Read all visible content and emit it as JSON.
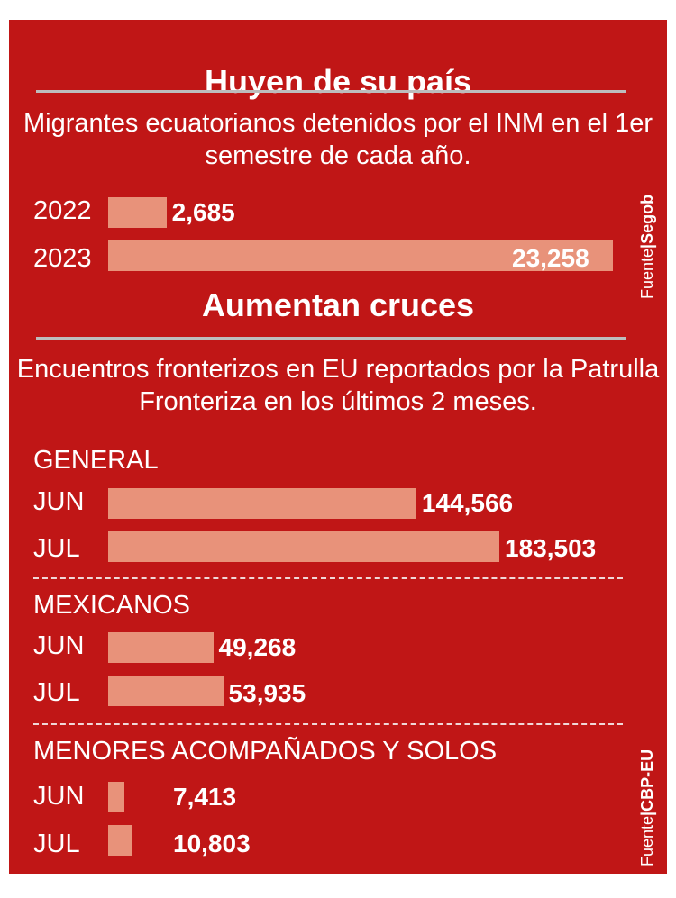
{
  "chart_data": [
    {
      "type": "bar",
      "title": "Huyen de su país",
      "subtitle": "Migrantes ecuatorianos detenidos por el INM en el 1er semestre de cada año.",
      "source_label": "Fuente",
      "source_name": "Segob",
      "categories": [
        "2022",
        "2023"
      ],
      "values": [
        2685,
        23258
      ],
      "value_labels": [
        "2,685",
        "23,258"
      ]
    },
    {
      "type": "bar",
      "title": "Aumentan cruces",
      "subtitle": "Encuentros fronterizos en EU reportados por la Patrulla Fronteriza en los últimos 2 meses.",
      "source_label": "Fuente",
      "source_name": "CBP-EU",
      "groups": [
        {
          "name": "GENERAL",
          "categories": [
            "JUN",
            "JUL"
          ],
          "values": [
            144566,
            183503
          ],
          "value_labels": [
            "144,566",
            "183,503"
          ]
        },
        {
          "name": "MEXICANOS",
          "categories": [
            "JUN",
            "JUL"
          ],
          "values": [
            49268,
            53935
          ],
          "value_labels": [
            "49,268",
            "53,935"
          ]
        },
        {
          "name": "MENORES ACOMPAÑADOS Y SOLOS",
          "categories": [
            "JUN",
            "JUL"
          ],
          "values": [
            7413,
            10803
          ],
          "value_labels": [
            "7,413",
            "10,803"
          ]
        }
      ]
    }
  ],
  "colors": {
    "background": "#c01616",
    "bar": "#e8927a",
    "text": "#ffffff",
    "rule": "#bdbdbd"
  }
}
